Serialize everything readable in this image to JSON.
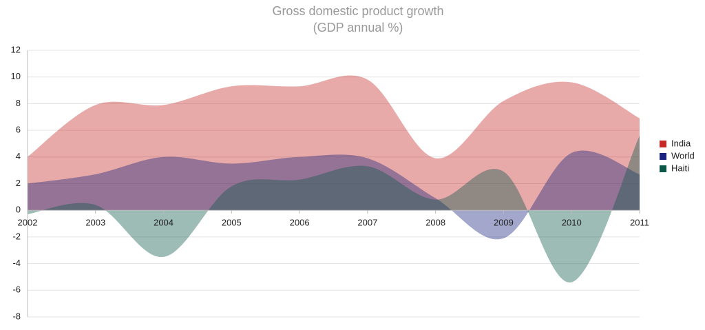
{
  "chart_data": {
    "type": "area",
    "title": "Gross domestic product growth",
    "subtitle": "(GDP annual %)",
    "x": [
      2002,
      2003,
      2004,
      2005,
      2006,
      2007,
      2008,
      2009,
      2010,
      2011
    ],
    "series": [
      {
        "name": "India",
        "color": "#c62828",
        "values": [
          4.0,
          7.9,
          7.9,
          9.3,
          9.3,
          9.8,
          3.9,
          8.2,
          9.6,
          6.9
        ]
      },
      {
        "name": "World",
        "color": "#1a237e",
        "values": [
          2.0,
          2.7,
          4.0,
          3.5,
          4.0,
          3.9,
          0.9,
          -2.1,
          4.3,
          2.7
        ]
      },
      {
        "name": "Haiti",
        "color": "#0d5748",
        "values": [
          -0.3,
          0.4,
          -3.5,
          1.8,
          2.3,
          3.3,
          0.8,
          2.9,
          -5.4,
          5.6
        ]
      }
    ],
    "xlim": [
      2002,
      2011
    ],
    "xticks": [
      2002,
      2003,
      2004,
      2005,
      2006,
      2007,
      2008,
      2009,
      2010,
      2011
    ],
    "ylim": [
      -8,
      12
    ],
    "yticks": [
      -8,
      -6,
      -4,
      -2,
      0,
      2,
      4,
      6,
      8,
      10,
      12
    ],
    "grid": true,
    "legend": "right"
  }
}
